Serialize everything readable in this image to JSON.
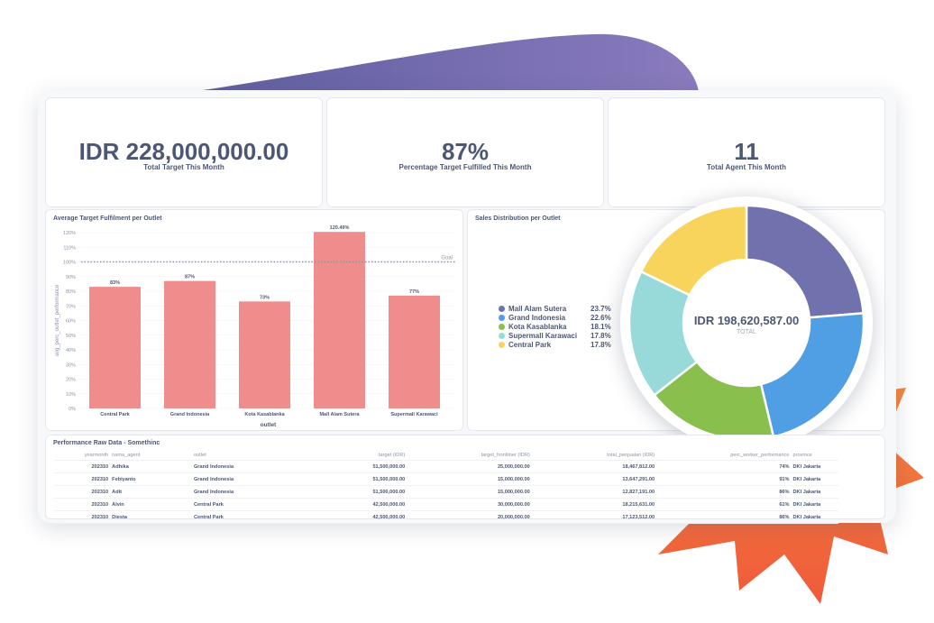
{
  "colors": {
    "accent_purple": "#7172ad",
    "bar_red": "#ef8c8c",
    "pie": [
      "#7172ad",
      "#509ee3",
      "#88bf4d",
      "#98d9d9",
      "#f9d45c"
    ],
    "burst": "#f26a3d"
  },
  "kpis": [
    {
      "value": "IDR 228,000,000.00",
      "label": "Total Target This Month"
    },
    {
      "value": "87%",
      "label": "Percentage Target Fulfilled This Month"
    },
    {
      "value": "11",
      "label": "Total Agent This Month"
    }
  ],
  "bar_card": {
    "title": "Average Target Fulfilment per Outlet"
  },
  "pie_card": {
    "title": "Sales Distribution per Outlet"
  },
  "table_card": {
    "title": "Performance Raw Data - Somethinc"
  },
  "chart_data": [
    {
      "type": "bar",
      "title": "Average Target Fulfilment per Outlet",
      "xlabel": "outlet",
      "ylabel": "avg_perc_outlet_performance",
      "categories": [
        "Central Park",
        "Grand Indonesia",
        "Kota Kasablanka",
        "Mall Alam Sutera",
        "Supermall Karawaci"
      ],
      "values": [
        83,
        87,
        73,
        120.49,
        77
      ],
      "data_labels": [
        "83%",
        "87%",
        "73%",
        "120.49%",
        "77%"
      ],
      "ylim": [
        0,
        120
      ],
      "yticks": [
        "0%",
        "10%",
        "20%",
        "30%",
        "40%",
        "50%",
        "60%",
        "70%",
        "80%",
        "90%",
        "100%",
        "110%",
        "120%"
      ],
      "goal": {
        "value": 100,
        "label": "Goal"
      }
    },
    {
      "type": "pie",
      "title": "Sales Distribution per Outlet",
      "categories": [
        "Mall Alam Sutera",
        "Grand Indonesia",
        "Kota Kasablanka",
        "Supermall Karawaci",
        "Central Park"
      ],
      "values": [
        23.7,
        22.6,
        18.1,
        17.8,
        17.8
      ],
      "value_labels": [
        "23.7%",
        "22.6%",
        "18.1%",
        "17.8%",
        "17.8%"
      ],
      "center_value": "IDR 198,620,587.00",
      "center_label": "TOTAL"
    }
  ],
  "table": {
    "columns": [
      "yearmonth",
      "nama_agent",
      "outlet",
      "target (IDR)",
      "target_frontliner (IDR)",
      "total_penjualan (IDR)",
      "perc_worker_performance",
      "province"
    ],
    "rows": [
      [
        "202310",
        "Adhika",
        "Grand Indonesia",
        "51,500,000.00",
        "25,000,000.00",
        "18,467,812.00",
        "74%",
        "DKI Jakarta"
      ],
      [
        "202310",
        "Febiyanto",
        "Grand Indonesia",
        "51,500,000.00",
        "15,000,000.00",
        "13,647,291.00",
        "91%",
        "DKI Jakarta"
      ],
      [
        "202310",
        "Adit",
        "Grand Indonesia",
        "51,500,000.00",
        "15,000,000.00",
        "12,827,191.00",
        "86%",
        "DKI Jakarta"
      ],
      [
        "202310",
        "Alvin",
        "Central Park",
        "42,500,000.00",
        "30,000,000.00",
        "18,215,631.00",
        "61%",
        "DKI Jakarta"
      ],
      [
        "202310",
        "Diesta",
        "Central Park",
        "42,500,000.00",
        "20,000,000.00",
        "17,123,512.00",
        "86%",
        "DKI Jakarta"
      ]
    ]
  }
}
